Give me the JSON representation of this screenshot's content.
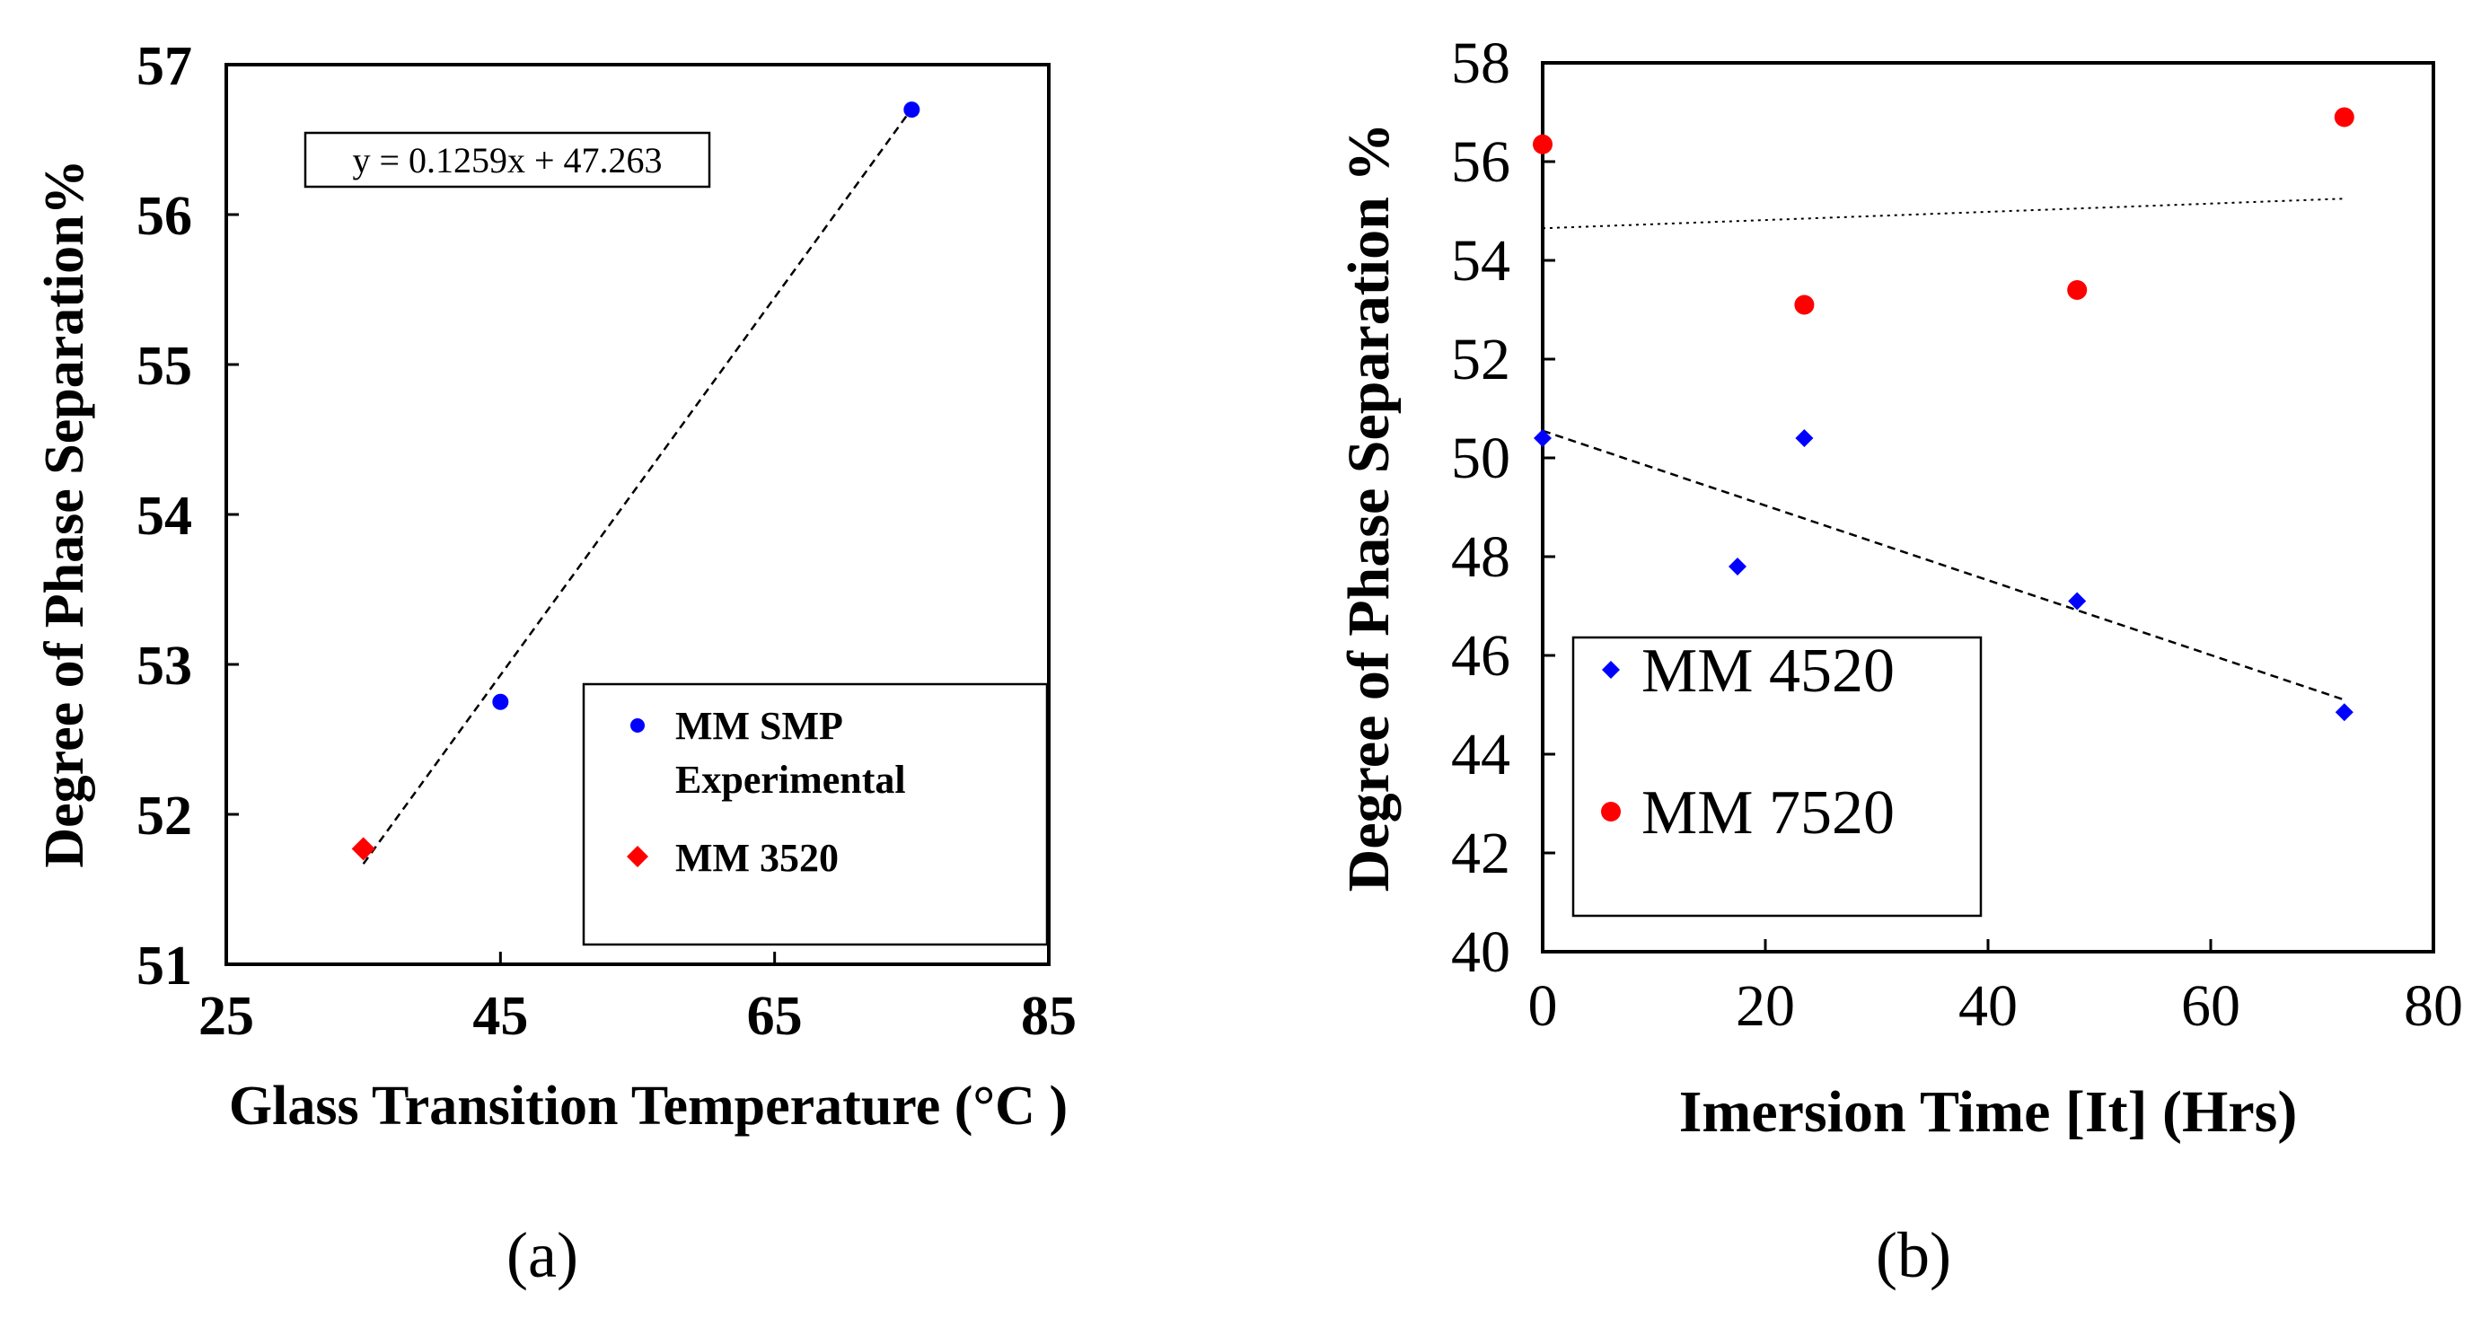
{
  "chart_data": [
    {
      "type": "scatter",
      "panel_label": "(a)",
      "xlabel": "Glass Transition Temperature (°C )",
      "ylabel": "Degree of Phase Separation%",
      "xlim": [
        25,
        85
      ],
      "ylim": [
        51,
        57
      ],
      "xticks": [
        "25",
        "45",
        "65",
        "85"
      ],
      "yticks": [
        "51",
        "52",
        "53",
        "54",
        "55",
        "56",
        "57"
      ],
      "equation": "y = 0.1259x + 47.263",
      "series": [
        {
          "name": "MM SMP Experimental",
          "legend_lines": [
            "MM SMP",
            "Experimental"
          ],
          "marker": "circle",
          "color": "#0000ff",
          "points": [
            [
              45,
              52.75
            ],
            [
              75,
              56.7
            ]
          ]
        },
        {
          "name": "MM 3520",
          "legend_lines": [
            "MM 3520"
          ],
          "marker": "diamond",
          "color": "#ff0000",
          "points": [
            [
              35,
              51.77
            ]
          ]
        }
      ],
      "trendline": {
        "slope": 0.1259,
        "intercept": 47.263,
        "x_range": [
          35,
          75
        ],
        "style": "dashed"
      }
    },
    {
      "type": "scatter",
      "panel_label": "(b)",
      "xlabel": "Imersion Time [It] (Hrs)",
      "ylabel": "Degree of Phase Separation %",
      "xlim": [
        0,
        80
      ],
      "ylim": [
        40,
        58
      ],
      "xticks": [
        "0",
        "20",
        "40",
        "60",
        "80"
      ],
      "yticks": [
        "40",
        "42",
        "44",
        "46",
        "48",
        "50",
        "52",
        "54",
        "56",
        "58"
      ],
      "series": [
        {
          "name": "MM 4520",
          "marker": "diamond",
          "color": "#0000ff",
          "points": [
            [
              0,
              50.4
            ],
            [
              17.5,
              47.8
            ],
            [
              23.5,
              50.4
            ],
            [
              48,
              47.1
            ],
            [
              72,
              44.85
            ]
          ],
          "trendline": {
            "x_range": [
              0,
              72
            ],
            "y_range": [
              50.55,
              45.1
            ],
            "style": "dashed"
          }
        },
        {
          "name": "MM 7520",
          "marker": "circle",
          "color": "#ff0000",
          "points": [
            [
              0,
              56.35
            ],
            [
              23.5,
              53.1
            ],
            [
              48,
              53.4
            ],
            [
              72,
              56.9
            ]
          ],
          "trendline": {
            "x_range": [
              0,
              72
            ],
            "y_range": [
              54.65,
              55.25
            ],
            "style": "dotted"
          }
        }
      ]
    }
  ]
}
